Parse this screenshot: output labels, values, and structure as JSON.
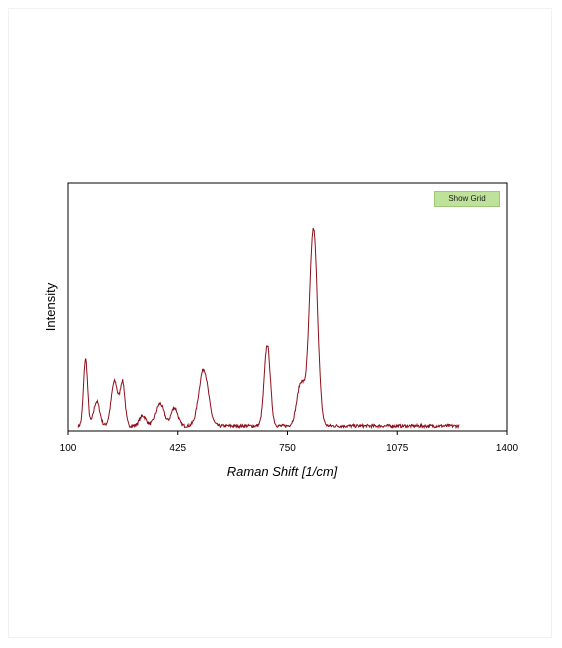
{
  "toolbar": {
    "show_grid_label": "Show Grid"
  },
  "colors": {
    "line": "#8b0e1a",
    "button_bg": "#bfe29b"
  },
  "chart_data": {
    "type": "line",
    "xlabel": "Raman Shift [1/cm]",
    "ylabel": "Intensity",
    "xlim": [
      100,
      1400
    ],
    "ylim": [
      0,
      100
    ],
    "xticks": [
      100,
      425,
      750,
      1075,
      1400
    ],
    "yticks": [],
    "grid": false,
    "series": [
      {
        "color": "#8b0e1a",
        "peaks": [
          {
            "center": 152,
            "height": 33,
            "width": 6
          },
          {
            "center": 185,
            "height": 12,
            "width": 9
          },
          {
            "center": 238,
            "height": 22,
            "width": 10
          },
          {
            "center": 262,
            "height": 21,
            "width": 7
          },
          {
            "center": 322,
            "height": 5,
            "width": 10
          },
          {
            "center": 372,
            "height": 11,
            "width": 12
          },
          {
            "center": 415,
            "height": 9,
            "width": 10
          },
          {
            "center": 502,
            "height": 28,
            "width": 14
          },
          {
            "center": 690,
            "height": 40,
            "width": 9
          },
          {
            "center": 790,
            "height": 21,
            "width": 12
          },
          {
            "center": 827,
            "height": 97,
            "width": 12
          }
        ],
        "x_start": 130,
        "x_end": 1258
      }
    ]
  }
}
